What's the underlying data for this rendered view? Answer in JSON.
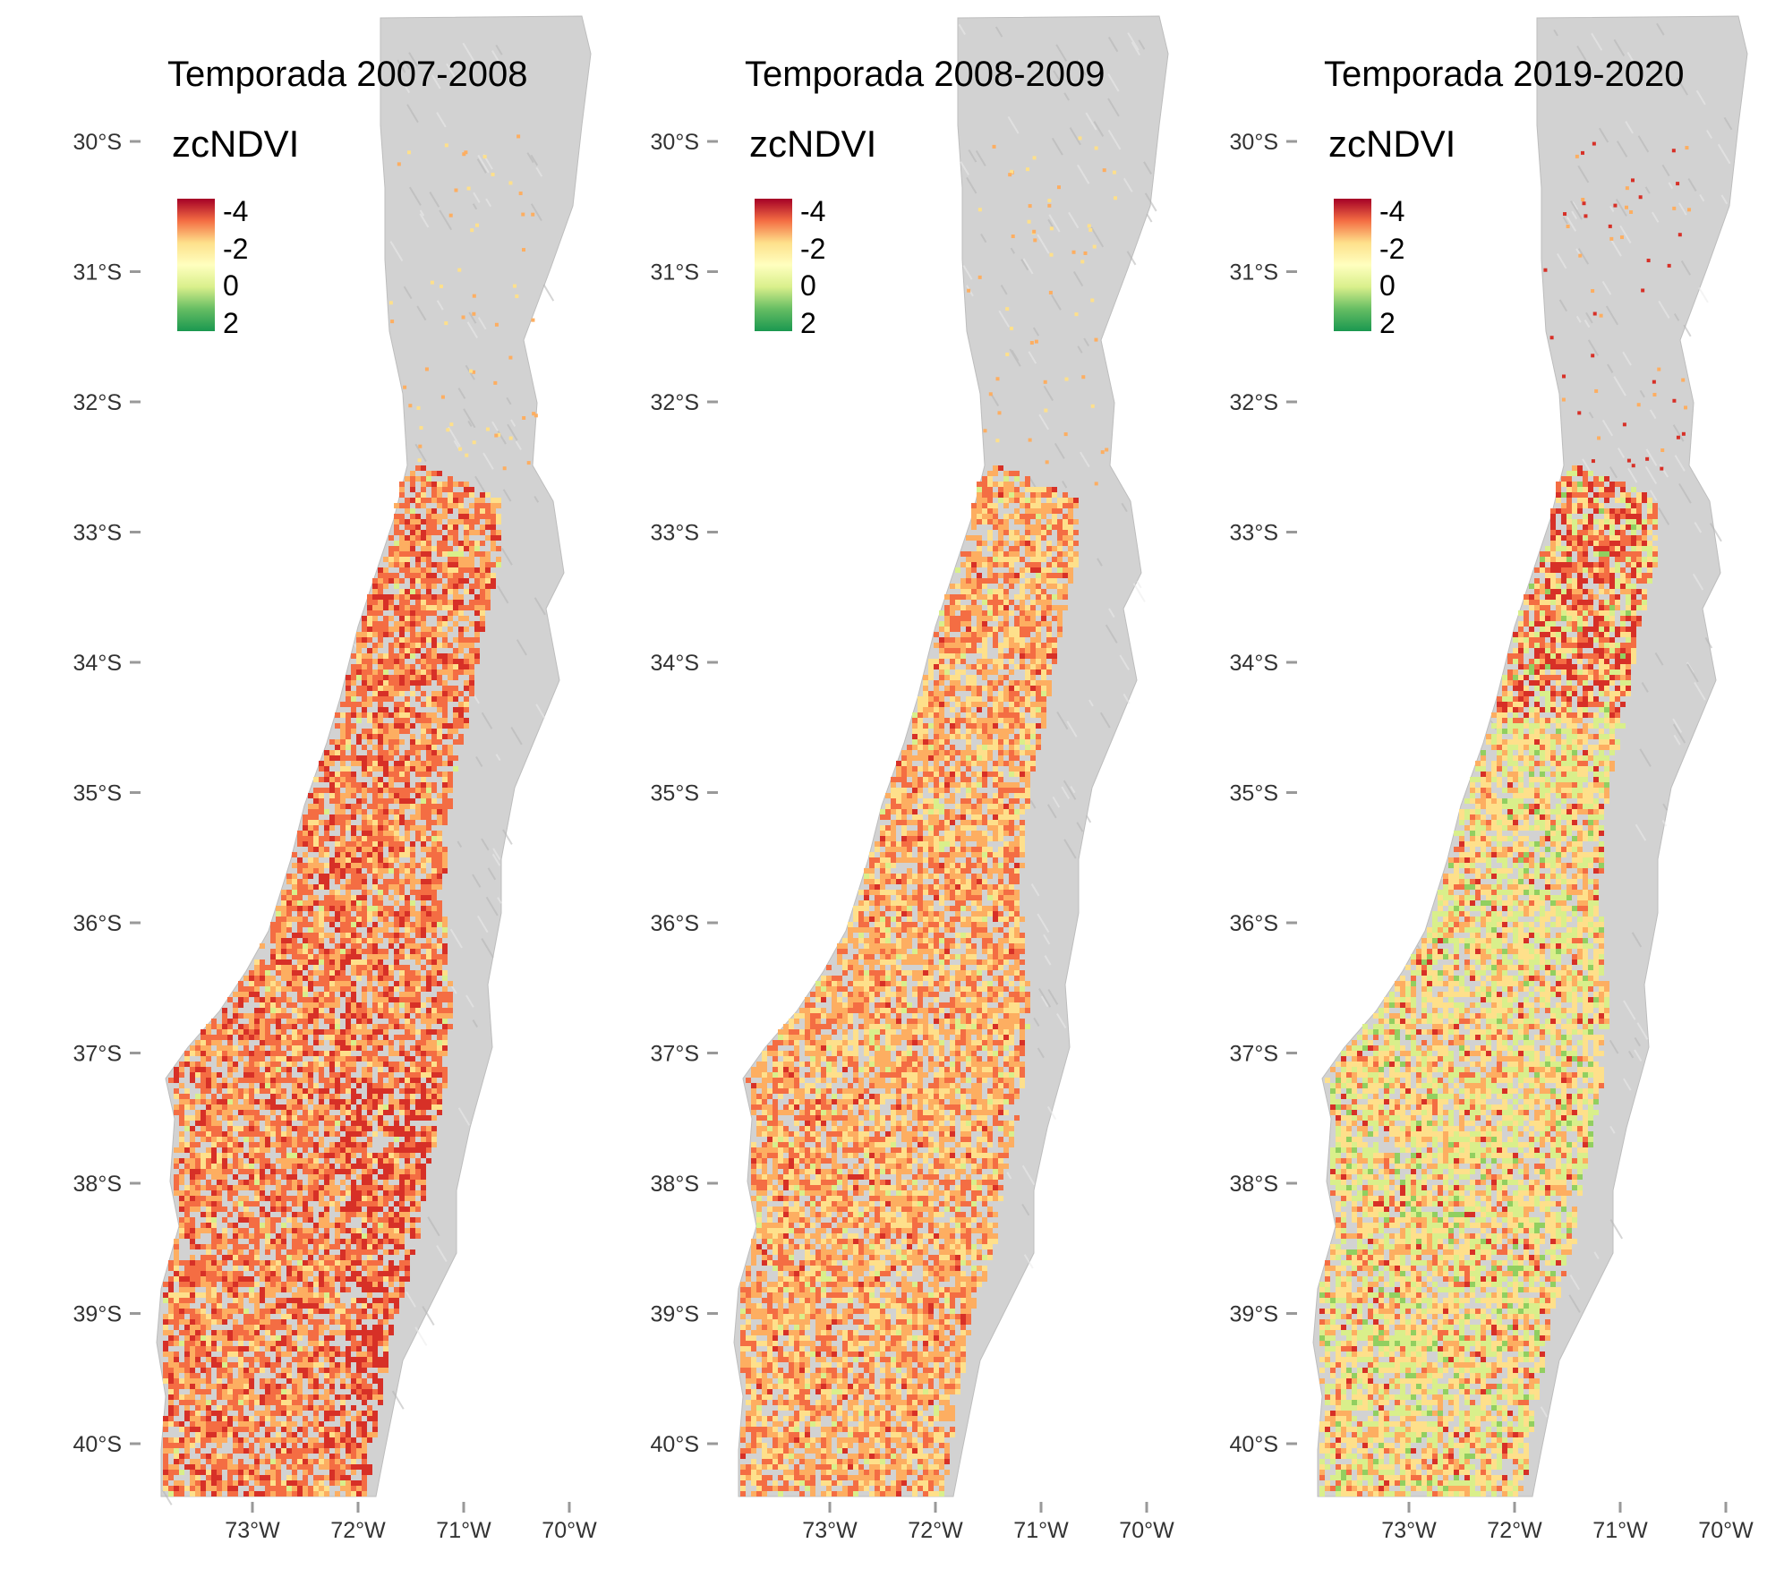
{
  "legend": {
    "title": "zcNDVI",
    "breaks": [
      "-4",
      "-2",
      "0",
      "2"
    ],
    "colors": [
      "#a50026",
      "#f46d43",
      "#fee08b",
      "#ffffbf",
      "#d9ef8b",
      "#66bd63",
      "#1a9850"
    ]
  },
  "axes": {
    "lat_ticks": [
      "30°S",
      "31°S",
      "32°S",
      "33°S",
      "34°S",
      "35°S",
      "36°S",
      "37°S",
      "38°S",
      "39°S",
      "40°S"
    ],
    "lon_ticks": [
      "73°W",
      "72°W",
      "71°W",
      "70°W"
    ]
  },
  "relief_color": "#d2d2d2",
  "panels": [
    {
      "title": "Temporada 2007-2008",
      "mix": [
        0.18,
        0.42,
        0.3,
        0.08,
        0.02,
        0.0
      ]
    },
    {
      "title": "Temporada 2008-2009",
      "mix": [
        0.03,
        0.28,
        0.4,
        0.24,
        0.05,
        0.0
      ]
    },
    {
      "title": "Temporada 2019-2020",
      "mix": [
        0.04,
        0.08,
        0.18,
        0.35,
        0.3,
        0.05
      ]
    }
  ]
}
